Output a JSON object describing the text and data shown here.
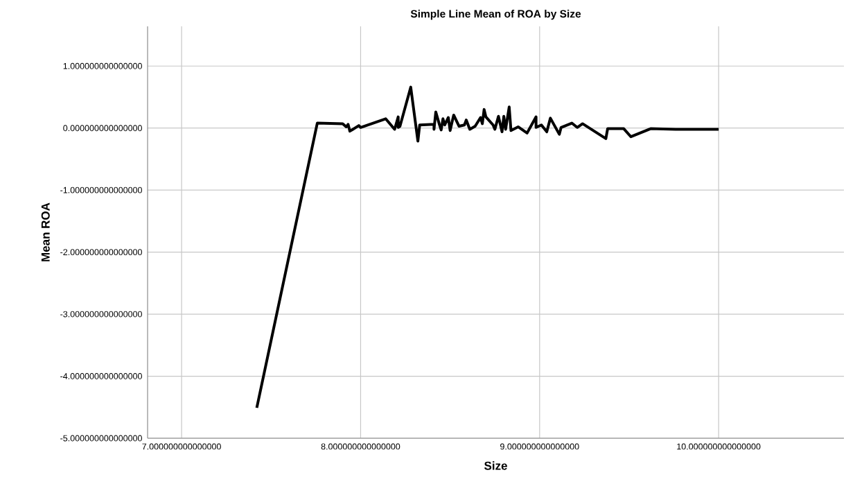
{
  "chart_data": {
    "type": "line",
    "title": "Simple Line Mean of ROA by Size",
    "xlabel": "Size",
    "ylabel": "Mean ROA",
    "x": [
      7.42,
      7.758,
      7.9,
      7.92,
      7.93,
      7.94,
      7.99,
      8.0,
      8.14,
      8.19,
      8.21,
      8.21,
      8.22,
      8.28,
      8.32,
      8.33,
      8.41,
      8.41,
      8.42,
      8.44,
      8.45,
      8.46,
      8.47,
      8.49,
      8.5,
      8.52,
      8.55,
      8.58,
      8.59,
      8.61,
      8.64,
      8.67,
      8.68,
      8.69,
      8.7,
      8.74,
      8.75,
      8.77,
      8.79,
      8.8,
      8.81,
      8.83,
      8.84,
      8.88,
      8.93,
      8.98,
      8.98,
      9.01,
      9.04,
      9.06,
      9.11,
      9.12,
      9.18,
      9.21,
      9.24,
      9.37,
      9.38,
      9.47,
      9.51,
      9.62,
      9.76,
      10.0
    ],
    "values": [
      -4.51,
      0.08,
      0.07,
      0.02,
      0.06,
      -0.05,
      0.04,
      0.01,
      0.15,
      -0.02,
      0.18,
      0.01,
      0.03,
      0.66,
      -0.21,
      0.05,
      0.06,
      -0.02,
      0.26,
      0.06,
      -0.03,
      0.15,
      0.05,
      0.17,
      -0.04,
      0.21,
      0.03,
      0.05,
      0.13,
      -0.02,
      0.03,
      0.17,
      0.07,
      0.3,
      0.18,
      0.05,
      -0.02,
      0.19,
      -0.06,
      0.19,
      -0.02,
      0.34,
      -0.04,
      0.02,
      -0.08,
      0.18,
      0.01,
      0.05,
      -0.06,
      0.16,
      -0.1,
      0.01,
      0.08,
      0.01,
      0.07,
      -0.17,
      -0.01,
      -0.01,
      -0.14,
      -0.01,
      -0.02,
      -0.02
    ],
    "color": "#000000",
    "xlim": [
      6.81,
      10.7
    ],
    "ylim": [
      -5,
      1.64
    ],
    "xticks": [
      {
        "value": 7,
        "label": "7.000000000000000"
      },
      {
        "value": 8,
        "label": "8.000000000000000"
      },
      {
        "value": 9,
        "label": "9.000000000000000"
      },
      {
        "value": 10,
        "label": "10.000000000000000"
      }
    ],
    "yticks": [
      {
        "value": -5,
        "label": "-5.000000000000000"
      },
      {
        "value": -4,
        "label": "-4.000000000000000"
      },
      {
        "value": -3,
        "label": "-3.000000000000000"
      },
      {
        "value": -2,
        "label": "-2.000000000000000"
      },
      {
        "value": -1,
        "label": "-1.000000000000000"
      },
      {
        "value": 0,
        "label": "0.000000000000000"
      },
      {
        "value": 1,
        "label": "1.000000000000000"
      }
    ],
    "grid": true,
    "marker": "none",
    "line_style": "solid"
  }
}
